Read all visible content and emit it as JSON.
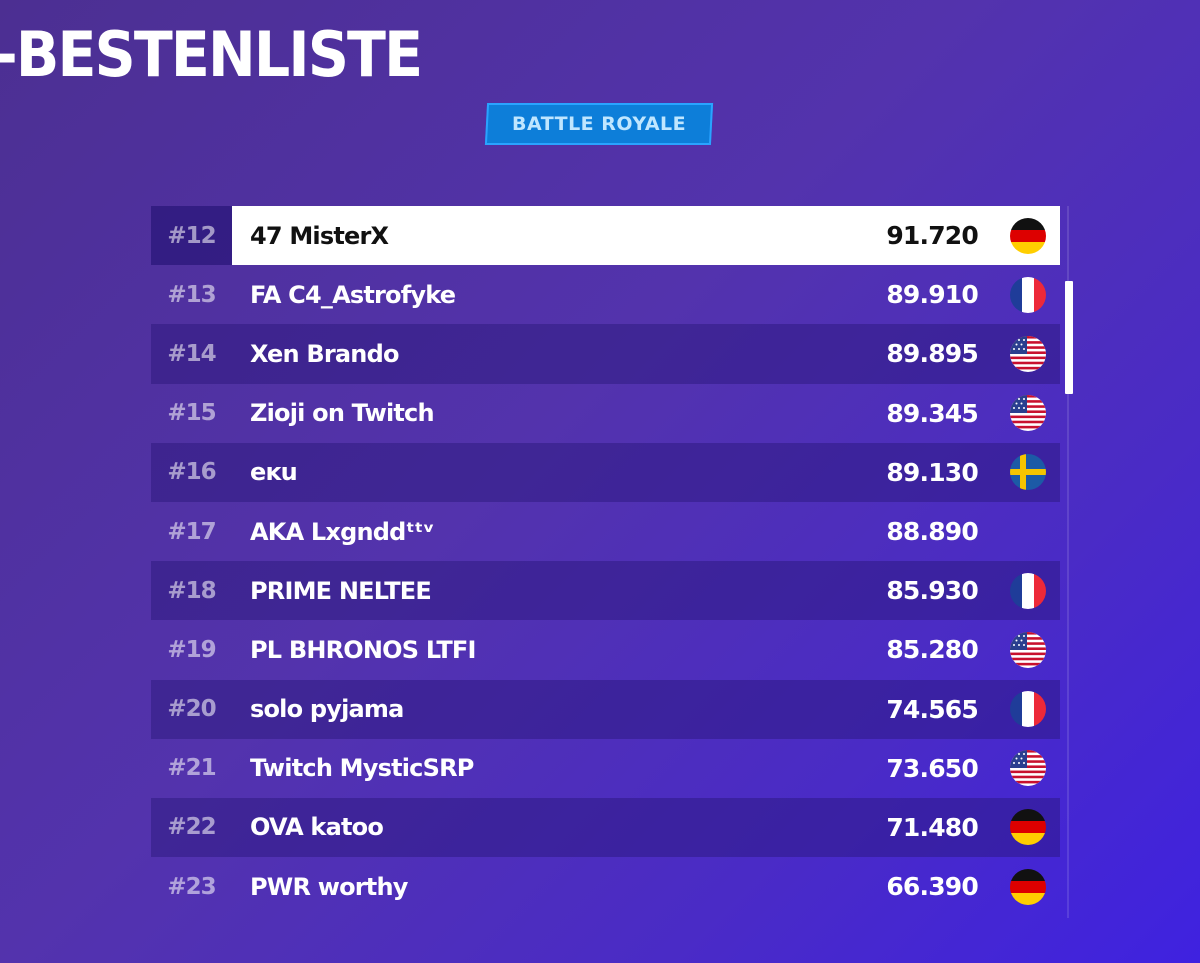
{
  "header": {
    "title": "-BESTENLISTE",
    "mode_badge": "BATTLE ROYALE"
  },
  "leaderboard": {
    "rows": [
      {
        "rank": "#12",
        "name": "47 MisterX",
        "score": "91.720",
        "flag": "germany",
        "selected": true
      },
      {
        "rank": "#13",
        "name": "FA C4_Astrofyke",
        "score": "89.910",
        "flag": "france"
      },
      {
        "rank": "#14",
        "name": "Xen Brando",
        "score": "89.895",
        "flag": "usa"
      },
      {
        "rank": "#15",
        "name": "Zioji on Twitch",
        "score": "89.345",
        "flag": "usa"
      },
      {
        "rank": "#16",
        "name": "eĸu",
        "score": "89.130",
        "flag": "sweden"
      },
      {
        "rank": "#17",
        "name": "AKA Lxgnddᵗᵗᵛ",
        "score": "88.890",
        "flag": "none"
      },
      {
        "rank": "#18",
        "name": "PRIME NELTEE",
        "score": "85.930",
        "flag": "france"
      },
      {
        "rank": "#19",
        "name": "PL BHRONOS LTFI",
        "score": "85.280",
        "flag": "usa"
      },
      {
        "rank": "#20",
        "name": "solo pyjama",
        "score": "74.565",
        "flag": "france"
      },
      {
        "rank": "#21",
        "name": "Twitch MysticSRP",
        "score": "73.650",
        "flag": "usa"
      },
      {
        "rank": "#22",
        "name": "OVA katoo",
        "score": "71.480",
        "flag": "germany"
      },
      {
        "rank": "#23",
        "name": "PWR worthy",
        "score": "66.390",
        "flag": "germany"
      }
    ]
  },
  "colors": {
    "highlight_row": "#ffffff",
    "badge_fill": "#0d7ed9",
    "badge_text": "#bfe6ff"
  }
}
